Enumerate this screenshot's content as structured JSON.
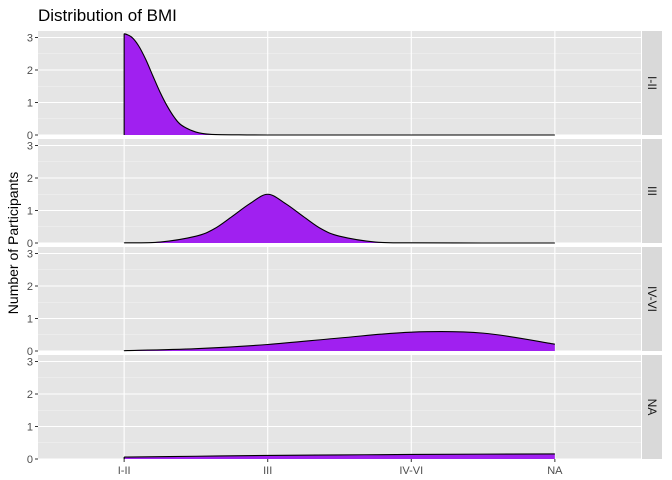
{
  "chart_data": {
    "type": "area",
    "title": "Distribution of BMI",
    "xlabel": "",
    "ylabel": "Number of Participants",
    "categories": [
      "I-II",
      "III",
      "IV-VI",
      "NA"
    ],
    "ylim": [
      0,
      3.2
    ],
    "yticks": [
      0,
      1,
      2,
      3
    ],
    "grid": true,
    "fill_color": "#a020f0",
    "panel_background": "#e5e5e5",
    "strip_background": "#d9d9d9",
    "panels": [
      {
        "label": "I-II",
        "x": [
          1,
          1.05,
          1.1,
          1.15,
          1.2,
          1.25,
          1.3,
          1.35,
          1.4,
          1.5,
          1.6,
          1.8,
          2,
          2.5,
          3,
          3.5,
          4
        ],
        "y": [
          3.12,
          3.02,
          2.75,
          2.33,
          1.82,
          1.32,
          0.89,
          0.54,
          0.3,
          0.09,
          0.02,
          0.005,
          0,
          0,
          0,
          0,
          0
        ]
      },
      {
        "label": "III",
        "x": [
          1,
          1.25,
          1.5,
          1.625,
          1.75,
          1.875,
          2,
          2.125,
          2.25,
          2.375,
          2.5,
          2.75,
          3,
          3.5,
          4
        ],
        "y": [
          0.005,
          0.03,
          0.21,
          0.43,
          0.81,
          1.21,
          1.5,
          1.21,
          0.81,
          0.43,
          0.21,
          0.03,
          0.005,
          0,
          0
        ],
        "peak_label": ""
      },
      {
        "label": "IV-VI",
        "x": [
          1,
          1.5,
          2,
          2.5,
          3,
          3.5,
          4
        ],
        "y": [
          0.01,
          0.07,
          0.2,
          0.4,
          0.58,
          0.55,
          0.21
        ]
      },
      {
        "label": "NA",
        "x": [
          1,
          1.5,
          2,
          2.5,
          3,
          3.5,
          4
        ],
        "y": [
          0.06,
          0.085,
          0.11,
          0.125,
          0.14,
          0.15,
          0.155
        ]
      }
    ]
  }
}
